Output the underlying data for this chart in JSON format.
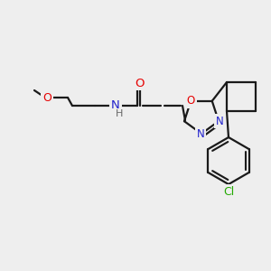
{
  "bg_color": "#eeeeee",
  "bond_color": "#1a1a1a",
  "atom_colors": {
    "O": "#e60000",
    "N": "#2222cc",
    "Cl": "#22aa00",
    "H": "#666666"
  },
  "lw": 1.6
}
